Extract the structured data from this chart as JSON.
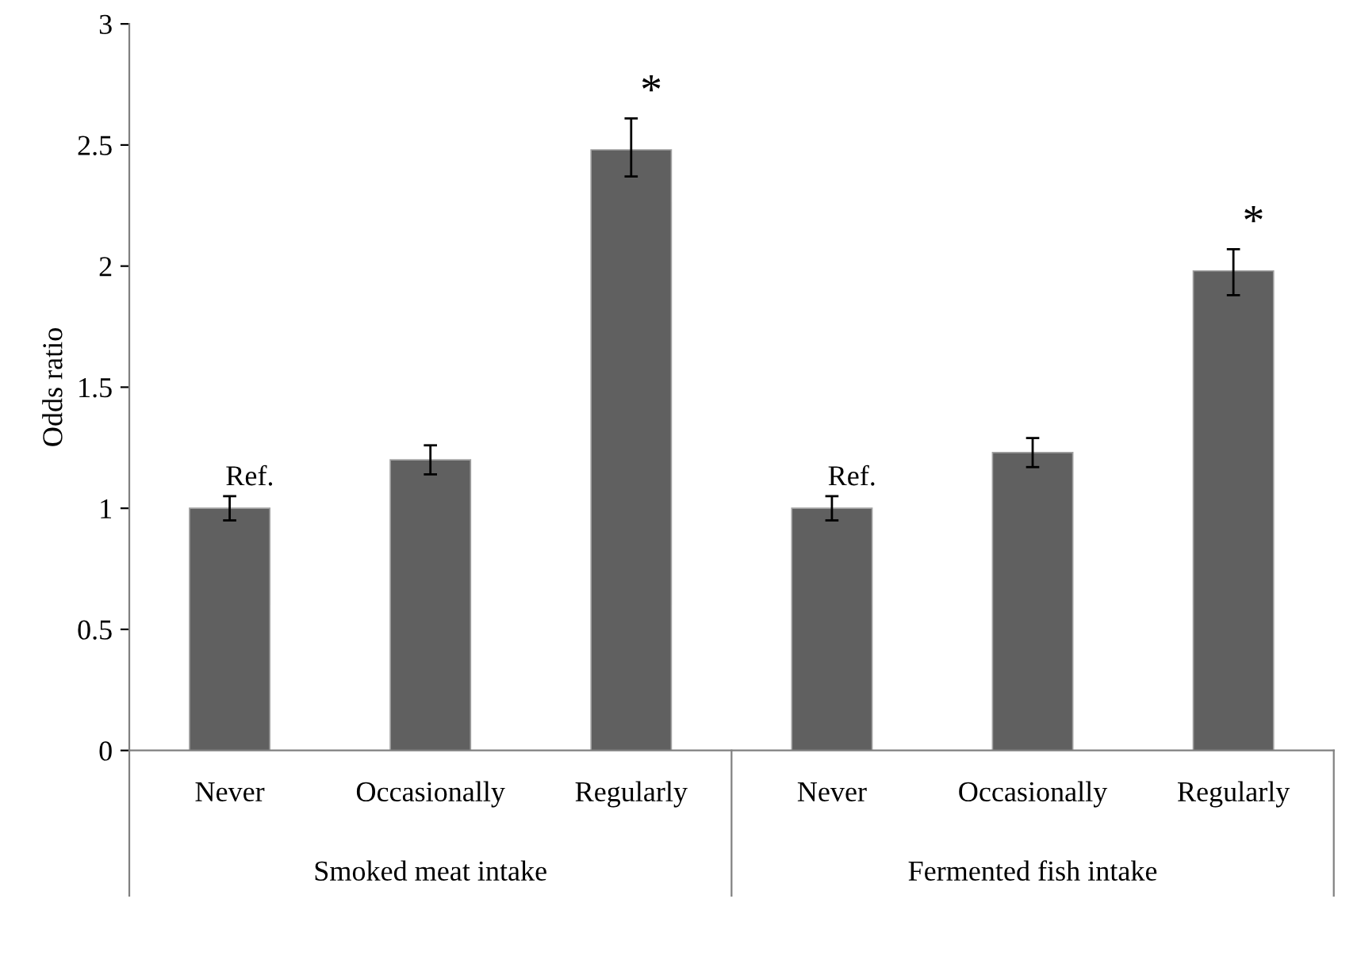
{
  "chart_data": {
    "type": "bar",
    "ylabel": "Odds ratio",
    "categories": [
      "Never",
      "Occasionally",
      "Regularly",
      "Never",
      "Occasionally",
      "Regularly"
    ],
    "values": [
      1.0,
      1.2,
      2.48,
      1.0,
      1.23,
      1.98
    ],
    "errors": [
      0.05,
      0.06,
      [
        2.37,
        2.61
      ],
      0.05,
      [
        1.17,
        1.29
      ],
      [
        1.88,
        2.07
      ]
    ],
    "value_labels": [
      "Ref.",
      null,
      "*",
      "Ref.",
      null,
      "*"
    ],
    "color": "#606060",
    "ylim": [
      0,
      3
    ],
    "yticks": [
      0,
      0.5,
      1,
      1.5,
      2,
      2.5,
      3
    ],
    "grid": false,
    "legend": false,
    "annotations": [
      "Smoked meat intake",
      "Fermented fish intake"
    ]
  }
}
